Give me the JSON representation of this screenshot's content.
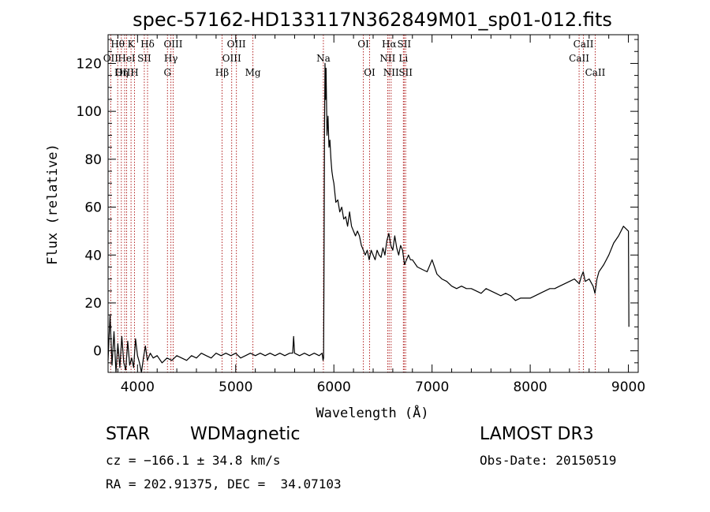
{
  "chart_data": {
    "type": "line",
    "title": "spec-57162-HD133117N362849M01_sp01-012.fits",
    "xlabel": "Wavelength (Å)",
    "ylabel": "Flux (relative)",
    "xlim": [
      3700,
      9100
    ],
    "ylim": [
      -9,
      132
    ],
    "xticks": [
      4000,
      5000,
      6000,
      7000,
      8000,
      9000
    ],
    "yticks": [
      0,
      20,
      40,
      60,
      80,
      100,
      120
    ],
    "grid": false,
    "line_color": "#000000",
    "marker_color": "#b22222",
    "spectral_lines": [
      {
        "label": "Hθ",
        "wavelength": 3798,
        "row": 1
      },
      {
        "label": "OII",
        "wavelength": 3727,
        "row": 2
      },
      {
        "label": "OIII",
        "wavelength": 3869,
        "row": 3
      },
      {
        "label": "K",
        "wavelength": 3934,
        "row": 1
      },
      {
        "label": "HeI",
        "wavelength": 3889,
        "row": 2
      },
      {
        "label": "Hη",
        "wavelength": 3835,
        "row": 3
      },
      {
        "label": "SII",
        "wavelength": 4069,
        "row": 2
      },
      {
        "label": "H",
        "wavelength": 3969,
        "row": 3
      },
      {
        "label": "Hδ",
        "wavelength": 4102,
        "row": 1
      },
      {
        "label": "OIII",
        "wavelength": 4363,
        "row": 1
      },
      {
        "label": "Hγ",
        "wavelength": 4340,
        "row": 2
      },
      {
        "label": "G",
        "wavelength": 4305,
        "row": 3
      },
      {
        "label": "OIII",
        "wavelength": 5007,
        "row": 1
      },
      {
        "label": "OIII",
        "wavelength": 4959,
        "row": 2
      },
      {
        "label": "Hβ",
        "wavelength": 4861,
        "row": 3
      },
      {
        "label": "Mg",
        "wavelength": 5175,
        "row": 3
      },
      {
        "label": "Na",
        "wavelength": 5893,
        "row": 2
      },
      {
        "label": "OI",
        "wavelength": 6300,
        "row": 1
      },
      {
        "label": "OI",
        "wavelength": 6364,
        "row": 3
      },
      {
        "label": "Hα",
        "wavelength": 6563,
        "row": 1
      },
      {
        "label": "NII",
        "wavelength": 6548,
        "row": 2
      },
      {
        "label": "NII",
        "wavelength": 6583,
        "row": 3
      },
      {
        "label": "SII",
        "wavelength": 6716,
        "row": 1
      },
      {
        "label": "Li",
        "wavelength": 6708,
        "row": 2
      },
      {
        "label": "SII",
        "wavelength": 6731,
        "row": 3
      },
      {
        "label": "CaII",
        "wavelength": 8542,
        "row": 1
      },
      {
        "label": "CaII",
        "wavelength": 8498,
        "row": 2
      },
      {
        "label": "CaII",
        "wavelength": 8662,
        "row": 3
      }
    ],
    "series": [
      {
        "x": [
          3700,
          3720,
          3740,
          3760,
          3780,
          3800,
          3820,
          3840,
          3860,
          3880,
          3900,
          3920,
          3940,
          3960,
          3980,
          4000,
          4020,
          4040,
          4060,
          4080,
          4100,
          4130,
          4160,
          4200,
          4250,
          4300,
          4350,
          4400,
          4450,
          4500,
          4550,
          4600,
          4650,
          4700,
          4750,
          4800,
          4850,
          4900,
          4950,
          5000,
          5050,
          5100,
          5150,
          5200,
          5250,
          5300,
          5350,
          5400,
          5450,
          5500,
          5550,
          5580,
          5590,
          5600,
          5650,
          5700,
          5750,
          5800,
          5850,
          5880,
          5890,
          5895,
          5900,
          5905,
          5910,
          5915,
          5920,
          5930,
          5940,
          5950,
          5960,
          5970,
          5980,
          5990,
          6000,
          6020,
          6040,
          6060,
          6080,
          6100,
          6120,
          6140,
          6160,
          6180,
          6200,
          6220,
          6240,
          6260,
          6280,
          6300,
          6320,
          6340,
          6360,
          6380,
          6400,
          6420,
          6440,
          6460,
          6480,
          6500,
          6520,
          6540,
          6560,
          6580,
          6600,
          6620,
          6640,
          6660,
          6680,
          6700,
          6720,
          6740,
          6760,
          6780,
          6800,
          6850,
          6900,
          6950,
          7000,
          7050,
          7100,
          7150,
          7200,
          7250,
          7300,
          7350,
          7400,
          7450,
          7500,
          7550,
          7600,
          7650,
          7700,
          7750,
          7800,
          7850,
          7900,
          7950,
          8000,
          8050,
          8100,
          8150,
          8200,
          8250,
          8300,
          8350,
          8400,
          8450,
          8500,
          8520,
          8540,
          8560,
          8600,
          8640,
          8660,
          8680,
          8700,
          8750,
          8800,
          8850,
          8900,
          8950,
          9000,
          9005
        ],
        "y": [
          -4,
          15,
          -6,
          8,
          -9,
          3,
          -7,
          6,
          -5,
          -8,
          4,
          -6,
          -3,
          -7,
          5,
          -2,
          -5,
          -9,
          -3,
          2,
          -4,
          -1,
          -3,
          -2,
          -5,
          -3,
          -4,
          -2,
          -3,
          -4,
          -2,
          -3,
          -1,
          -2,
          -3,
          -1,
          -2,
          -1,
          -2,
          -1,
          -3,
          -2,
          -1,
          -2,
          -1,
          -2,
          -1,
          -2,
          -1,
          -2,
          -1,
          -1,
          6,
          -1,
          -2,
          -1,
          -2,
          -1,
          -2,
          -1,
          -4,
          -3,
          40,
          95,
          120,
          105,
          118,
          90,
          98,
          85,
          88,
          80,
          75,
          72,
          70,
          62,
          63,
          58,
          60,
          55,
          56,
          52,
          58,
          52,
          50,
          48,
          50,
          48,
          44,
          42,
          40,
          42,
          38,
          42,
          40,
          38,
          42,
          40,
          39,
          43,
          40,
          46,
          49,
          44,
          42,
          48,
          43,
          40,
          44,
          42,
          36,
          38,
          40,
          38,
          38,
          35,
          34,
          33,
          38,
          32,
          30,
          29,
          27,
          26,
          27,
          26,
          26,
          25,
          24,
          26,
          25,
          24,
          23,
          24,
          23,
          21,
          22,
          22,
          22,
          23,
          24,
          25,
          26,
          26,
          27,
          28,
          29,
          30,
          28,
          31,
          33,
          29,
          30,
          27,
          24,
          30,
          33,
          36,
          40,
          45,
          48,
          52,
          50,
          10
        ]
      }
    ]
  },
  "info": {
    "class_label": "STAR",
    "subclass": "WDMagnetic",
    "cz": "cz = −166.1 ± 34.8 km/s",
    "radec": "RA = 202.91375, DEC =  34.07103",
    "survey": "LAMOST DR3",
    "obs_date": "Obs-Date: 20150519"
  }
}
